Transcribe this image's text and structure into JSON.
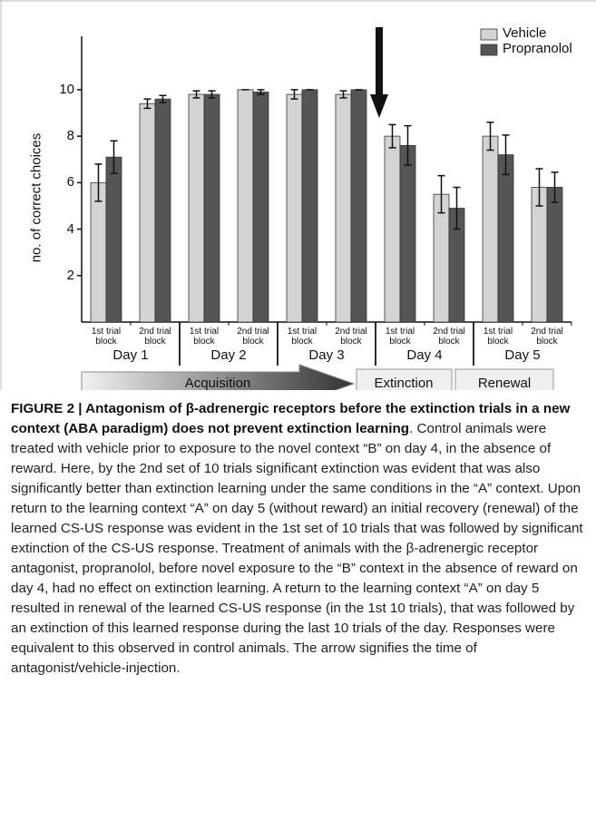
{
  "chart_data": {
    "type": "bar",
    "y_label": "no. of correct choices",
    "categories": [
      "1st trial block",
      "2nd trial block",
      "1st trial block",
      "2nd trial block",
      "1st trial block",
      "2nd trial block",
      "1st trial block",
      "2nd trial block",
      "1st trial block",
      "2nd trial block"
    ],
    "groups": [
      "Day 1",
      "Day 2",
      "Day 3",
      "Day 4",
      "Day 5"
    ],
    "phases": [
      "Acquisition",
      "Extinction",
      "Renewal"
    ],
    "series": [
      {
        "name": "Vehicle",
        "color": "#d4d4d4",
        "values": [
          6.0,
          9.4,
          9.8,
          10.0,
          9.8,
          9.8,
          8.0,
          5.5,
          8.0,
          5.8
        ],
        "errors": [
          0.8,
          0.2,
          0.15,
          0,
          0.2,
          0.15,
          0.5,
          0.8,
          0.6,
          0.8
        ]
      },
      {
        "name": "Propranolol",
        "color": "#555555",
        "values": [
          7.1,
          9.6,
          9.8,
          9.9,
          10.0,
          10.0,
          7.6,
          4.9,
          7.2,
          5.8
        ],
        "errors": [
          0.7,
          0.15,
          0.15,
          0.1,
          0,
          0,
          0.85,
          0.9,
          0.85,
          0.65
        ]
      }
    ],
    "ylim": [
      0,
      12.3
    ],
    "yticks": [
      2,
      4,
      6,
      8,
      10
    ],
    "legend": "top-right"
  },
  "caption": {
    "title": "FIGURE 2 | Antagonism of β-adrenergic receptors before the extinction trials in a new context (ABA paradigm) does not prevent extinction learning",
    "text": ". Control animals were treated with vehicle prior to exposure to the novel context “B” on day 4, in the absence of reward. Here, by the 2nd set of 10 trials significant extinction was evident that was also significantly better than extinction learning under the same conditions in the “A” context. Upon return to the learning context “A” on day 5 (without reward) an initial recovery (renewal) of the learned CS-US response was evident in the 1st set of 10 trials that was followed by significant extinction of the CS-US response. Treatment of animals with the β-adrenergic receptor antagonist, propranolol, before novel exposure to the “B” context in the absence of reward on day 4, had no effect on extinction learning. A return to the learning context “A” on day 5 resulted in renewal of the learned CS-US response (in the 1st 10 trials), that was followed by an extinction of this learned response during the last 10 trials of the day. Responses were equivalent to this observed in control animals. The arrow signifies the time of antagonist/vehicle-injection."
  }
}
